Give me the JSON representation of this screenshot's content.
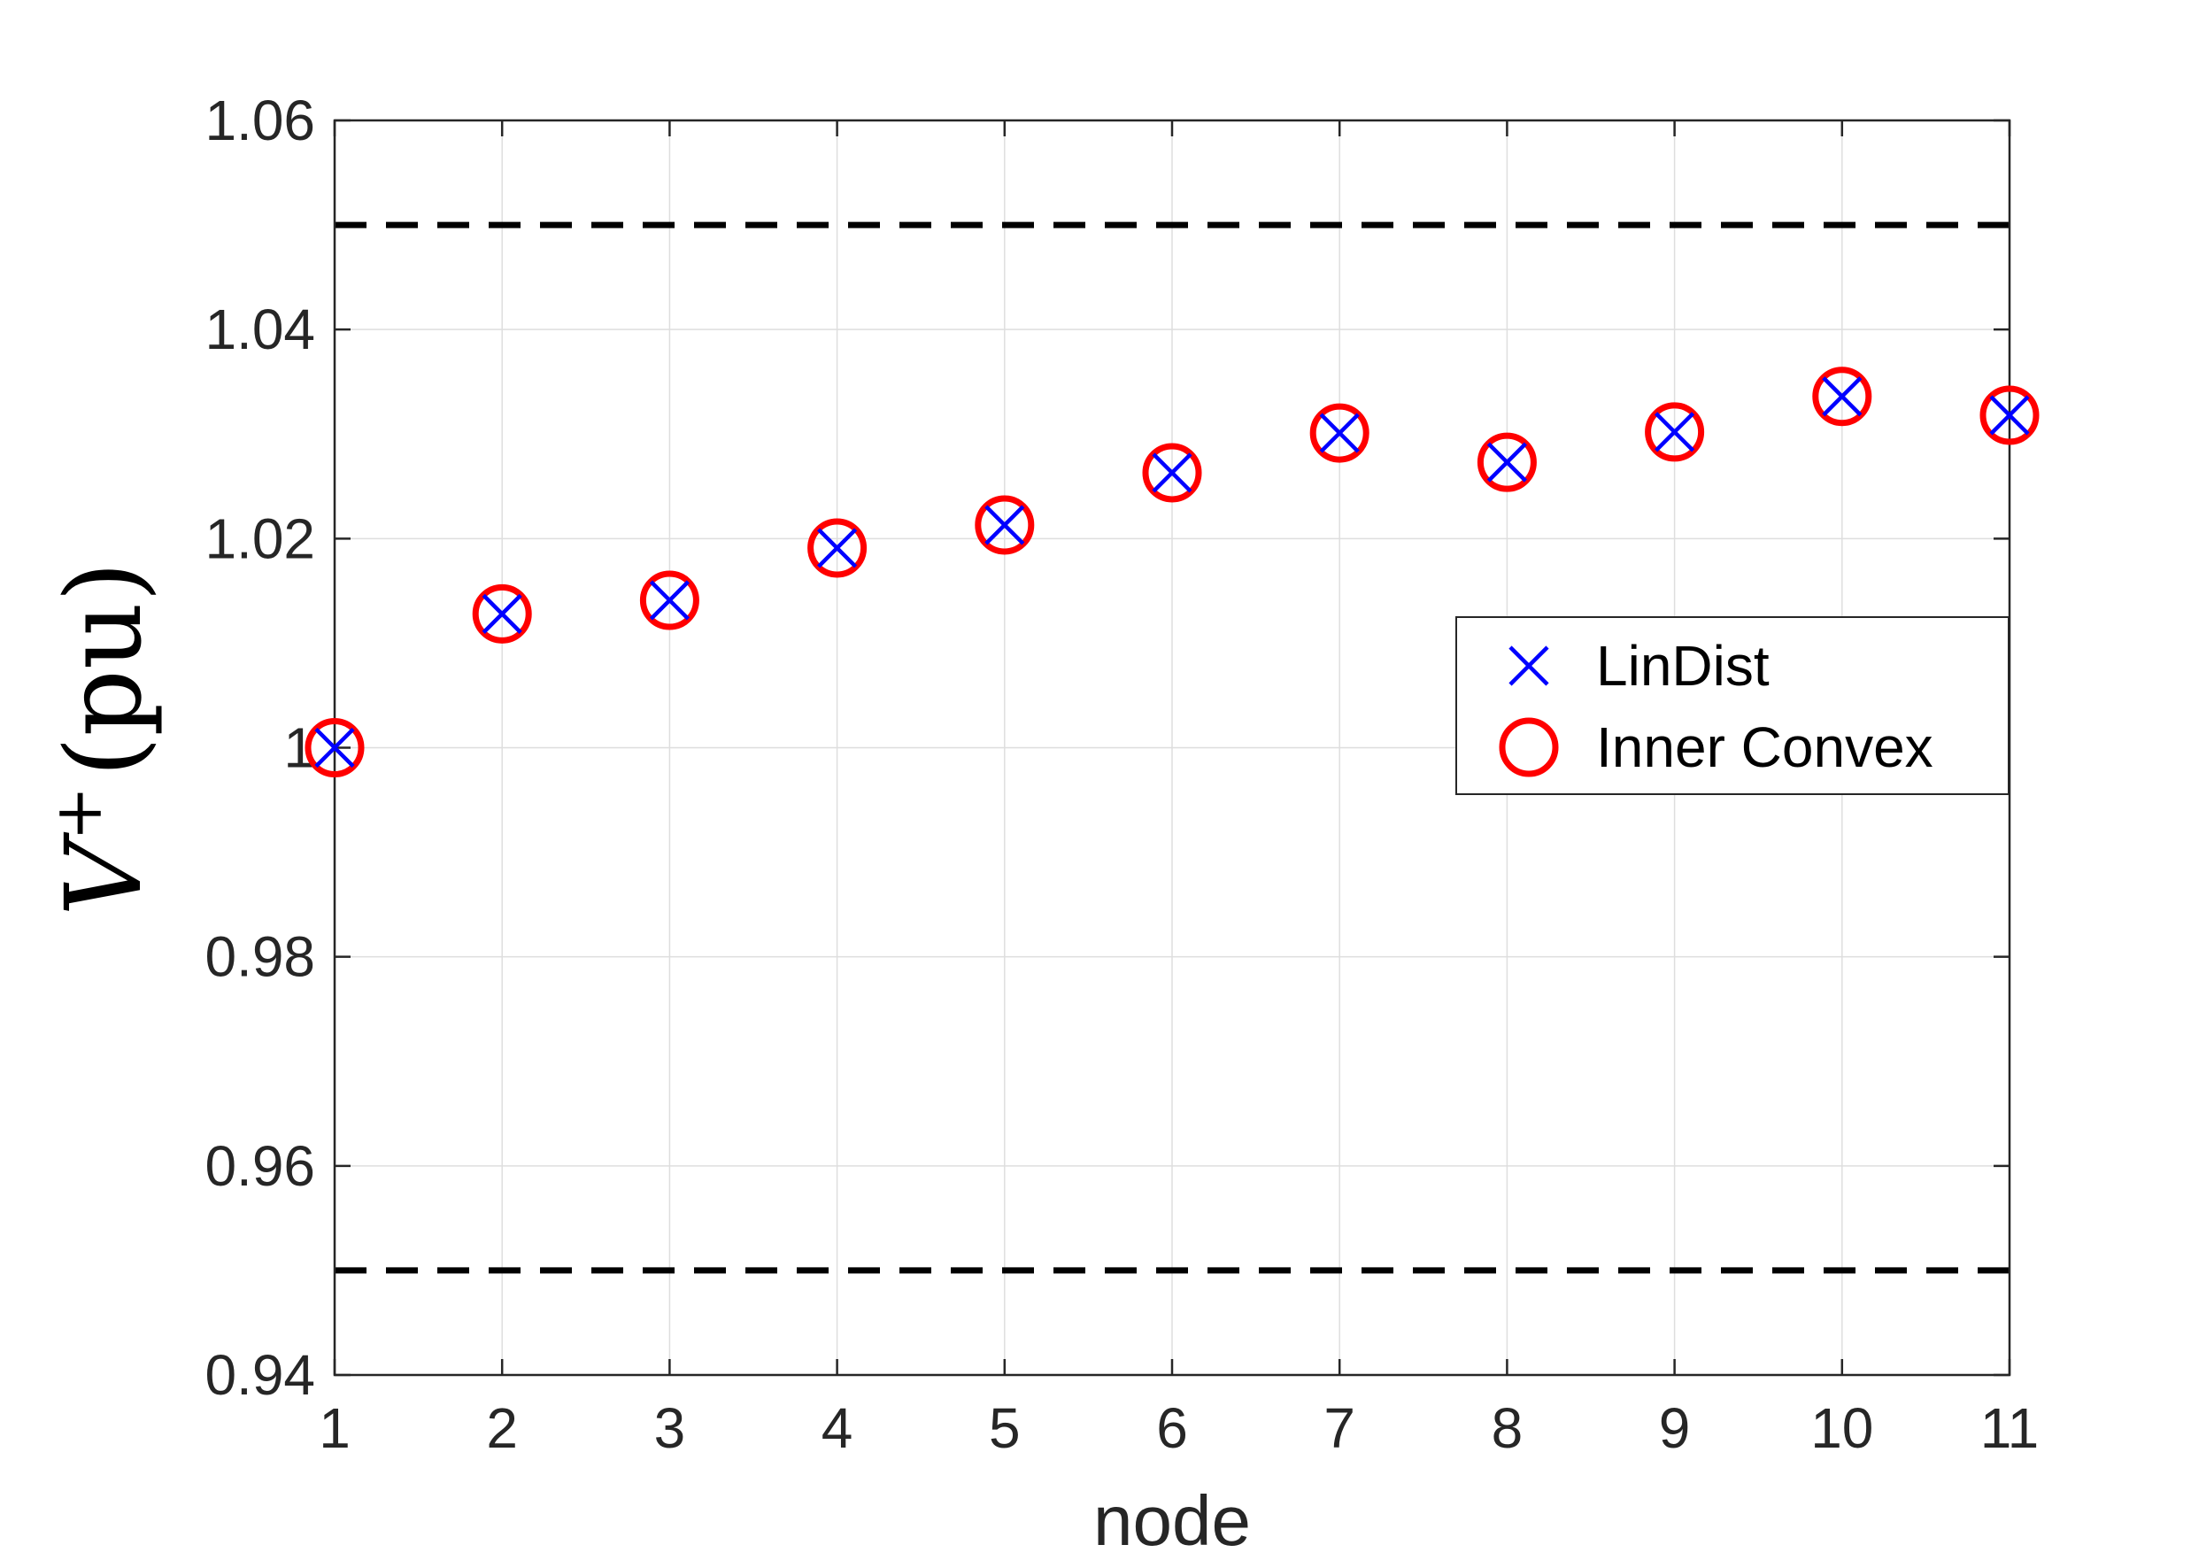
{
  "chart_data": {
    "type": "scatter",
    "title": "",
    "xlabel": "node",
    "ylabel": {
      "base": "V",
      "superscript": "+",
      "unit": "(pu)"
    },
    "xlim": [
      1,
      11
    ],
    "ylim": [
      0.94,
      1.06
    ],
    "xticks": [
      1,
      2,
      3,
      4,
      5,
      6,
      7,
      8,
      9,
      10,
      11
    ],
    "yticks": [
      0.94,
      0.96,
      0.98,
      1,
      1.02,
      1.04,
      1.06
    ],
    "ytick_labels": [
      "0.94",
      "0.96",
      "0.98",
      "1",
      "1.02",
      "1.04",
      "1.06"
    ],
    "grid": true,
    "legend_position": "right",
    "series": [
      {
        "name": "LinDist",
        "marker": "x",
        "color": "#0000ff",
        "x": [
          1,
          2,
          3,
          4,
          5,
          6,
          7,
          8,
          9,
          10,
          11
        ],
        "y": [
          1.0,
          1.0128,
          1.0141,
          1.0191,
          1.0213,
          1.0263,
          1.0301,
          1.0273,
          1.0302,
          1.0336,
          1.0318
        ]
      },
      {
        "name": "Inner Convex",
        "marker": "o",
        "color": "#ff0000",
        "x": [
          1,
          2,
          3,
          4,
          5,
          6,
          7,
          8,
          9,
          10,
          11
        ],
        "y": [
          1.0,
          1.0128,
          1.0141,
          1.0191,
          1.0213,
          1.0263,
          1.0301,
          1.0273,
          1.0302,
          1.0336,
          1.0318
        ]
      }
    ],
    "reference_lines": [
      {
        "y": 1.05,
        "style": "dashed",
        "color": "#000000"
      },
      {
        "y": 0.95,
        "style": "dashed",
        "color": "#000000"
      }
    ]
  }
}
